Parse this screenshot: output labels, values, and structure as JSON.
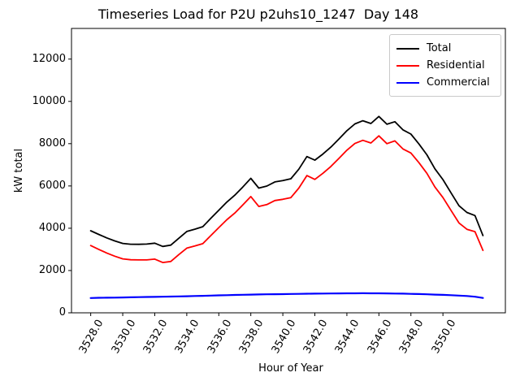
{
  "figure": {
    "title": "Timeseries Load for P2U p2uhs10_1247  Day 148",
    "xlabel": "Hour of Year",
    "ylabel": "kW total"
  },
  "legend": {
    "position": "upper right",
    "items": [
      {
        "label": "Total",
        "color": "#000000"
      },
      {
        "label": "Residential",
        "color": "#ff0000"
      },
      {
        "label": "Commercial",
        "color": "#0000ff"
      }
    ]
  },
  "chart_data": {
    "type": "line",
    "title": "Timeseries Load for P2U p2uhs10_1247  Day 148",
    "xlabel": "Hour of Year",
    "ylabel": "kW total",
    "grid": false,
    "legend_position": "upper right",
    "xlim": [
      3526.8,
      3553.9
    ],
    "ylim": [
      0,
      13450
    ],
    "xtick_values": [
      3528,
      3530,
      3532,
      3534,
      3536,
      3538,
      3540,
      3542,
      3544,
      3546,
      3548,
      3550
    ],
    "xtick_labels": [
      "3528.0",
      "3530.0",
      "3532.0",
      "3534.0",
      "3536.0",
      "3538.0",
      "3540.0",
      "3542.0",
      "3544.0",
      "3546.0",
      "3548.0",
      "3550.0"
    ],
    "xtick_rotation": 60,
    "ytick_values": [
      0,
      2000,
      4000,
      6000,
      8000,
      10000,
      12000
    ],
    "ytick_labels": [
      "0",
      "2000",
      "4000",
      "6000",
      "8000",
      "10000",
      "12000"
    ],
    "x": [
      3528.0,
      3528.5,
      3529.0,
      3529.5,
      3530.0,
      3530.5,
      3531.0,
      3531.5,
      3532.0,
      3532.5,
      3533.0,
      3533.5,
      3534.0,
      3534.5,
      3535.0,
      3535.5,
      3536.0,
      3536.5,
      3537.0,
      3537.5,
      3538.0,
      3538.5,
      3539.0,
      3539.5,
      3540.0,
      3540.5,
      3541.0,
      3541.5,
      3542.0,
      3542.5,
      3543.0,
      3543.5,
      3544.0,
      3544.5,
      3545.0,
      3545.5,
      3546.0,
      3546.5,
      3547.0,
      3547.5,
      3548.0,
      3548.5,
      3549.0,
      3549.5,
      3550.0,
      3550.5,
      3551.0,
      3551.5,
      3552.0,
      3552.5
    ],
    "series": [
      {
        "name": "Total",
        "color": "#000000",
        "values": [
          3880,
          3710,
          3545,
          3400,
          3280,
          3245,
          3240,
          3250,
          3295,
          3140,
          3200,
          3525,
          3845,
          3955,
          4075,
          4465,
          4855,
          5235,
          5565,
          5950,
          6360,
          5900,
          5995,
          6190,
          6255,
          6340,
          6795,
          7390,
          7220,
          7510,
          7835,
          8220,
          8610,
          8935,
          9085,
          8955,
          9290,
          8920,
          9040,
          8655,
          8455,
          7985,
          7475,
          6810,
          6300,
          5680,
          5065,
          4745,
          4600,
          3655
        ]
      },
      {
        "name": "Residential",
        "color": "#ff0000",
        "values": [
          3180,
          3000,
          2830,
          2680,
          2550,
          2510,
          2500,
          2500,
          2540,
          2380,
          2430,
          2750,
          3060,
          3160,
          3270,
          3650,
          4030,
          4400,
          4720,
          5100,
          5500,
          5030,
          5120,
          5310,
          5370,
          5450,
          5900,
          6490,
          6310,
          6600,
          6920,
          7300,
          7690,
          8010,
          8160,
          8030,
          8370,
          8000,
          8130,
          7750,
          7560,
          7100,
          6600,
          5950,
          5450,
          4850,
          4250,
          3950,
          3840,
          2950
        ]
      },
      {
        "name": "Commercial",
        "color": "#0000ff",
        "values": [
          700,
          710,
          715,
          720,
          728,
          735,
          740,
          748,
          755,
          760,
          768,
          775,
          785,
          795,
          805,
          815,
          825,
          835,
          845,
          852,
          860,
          868,
          875,
          880,
          885,
          890,
          896,
          902,
          908,
          912,
          916,
          920,
          922,
          924,
          925,
          924,
          922,
          918,
          912,
          905,
          896,
          886,
          875,
          862,
          848,
          832,
          815,
          795,
          760,
          705
        ]
      }
    ]
  }
}
